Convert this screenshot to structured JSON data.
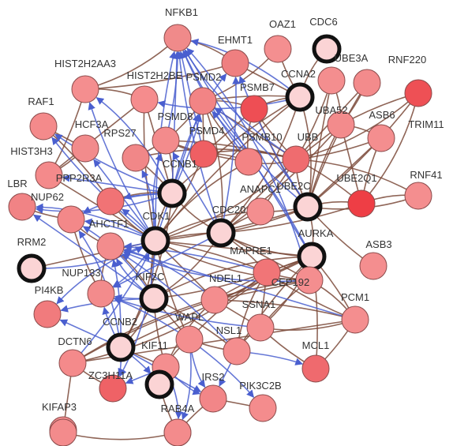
{
  "nodes": [
    {
      "id": "NFKB1",
      "label": "NFKB1",
      "fill": "#f08a8a",
      "hub": false
    },
    {
      "id": "EHMT1",
      "label": "EHMT1",
      "fill": "#ef7f80",
      "hub": false
    },
    {
      "id": "OAZ1",
      "label": "OAZ1",
      "fill": "#f48f90",
      "hub": false
    },
    {
      "id": "CDC6",
      "label": "CDC6",
      "fill": "#fbd4d5",
      "hub": true
    },
    {
      "id": "HIST2H2AA3",
      "label": "HIST2H2AA3",
      "fill": "#f48e8f",
      "hub": false
    },
    {
      "id": "HIST2H2BE",
      "label": "HIST2H2BE",
      "fill": "#f58c8d",
      "hub": false
    },
    {
      "id": "PSMD2",
      "label": "PSMD2",
      "fill": "#f28485",
      "hub": false
    },
    {
      "id": "PSMB7",
      "label": "PSMB7",
      "fill": "#ee4e54",
      "hub": false
    },
    {
      "id": "CCNA2",
      "label": "CCNA2",
      "fill": "#fbd4d5",
      "hub": true
    },
    {
      "id": "UBE3A",
      "label": "UBE3A",
      "fill": "#f48e8f",
      "hub": false
    },
    {
      "id": "RNF220",
      "label": "RNF220",
      "fill": "#f38b8c",
      "hub": false
    },
    {
      "id": "RAF1",
      "label": "RAF1",
      "fill": "#f48a8b",
      "hub": false
    },
    {
      "id": "HCFC3A",
      "label": "HCF3A",
      "fill": "#f28b8c",
      "hub": false
    },
    {
      "id": "PSMD8",
      "label": "PSMD8",
      "fill": "#f38b8c",
      "hub": false
    },
    {
      "id": "PSMD4",
      "label": "PSMD4",
      "fill": "#ef5f63",
      "hub": false
    },
    {
      "id": "RPS27",
      "label": "RPS27",
      "fill": "#f18788",
      "hub": false
    },
    {
      "id": "PSMB10",
      "label": "PSMB10",
      "fill": "#f38384",
      "hub": false
    },
    {
      "id": "UBB",
      "label": "UBB",
      "fill": "#ef6c6f",
      "hub": false
    },
    {
      "id": "UBA52",
      "label": "UBA52",
      "fill": "#f38b8c",
      "hub": false
    },
    {
      "id": "ASB6",
      "label": "ASB6",
      "fill": "#f48e8f",
      "hub": false
    },
    {
      "id": "TRIM11",
      "label": "TRIM11",
      "fill": "#ee5055",
      "hub": false
    },
    {
      "id": "HIST3H3",
      "label": "HIST3H3",
      "fill": "#f48a8b",
      "hub": false
    },
    {
      "id": "PPP2R3A",
      "label": "PPP2R3A",
      "fill": "#f17375",
      "hub": false
    },
    {
      "id": "CCNB1",
      "label": "CCNB1",
      "fill": "#fbd4d5",
      "hub": true
    },
    {
      "id": "ANAPC1",
      "label": "ANAPC1",
      "fill": "#f48e8f",
      "hub": false
    },
    {
      "id": "UBE2C",
      "label": "UBE2C",
      "fill": "#fbd4d5",
      "hub": true
    },
    {
      "id": "UBE2Q1",
      "label": "UBE2Q1",
      "fill": "#ee3e45",
      "hub": false
    },
    {
      "id": "RNF41",
      "label": "RNF41",
      "fill": "#f48e8f",
      "hub": false
    },
    {
      "id": "LBR",
      "label": "LBR",
      "fill": "#f18385",
      "hub": false
    },
    {
      "id": "NUP62",
      "label": "NUP62",
      "fill": "#f38889",
      "hub": false
    },
    {
      "id": "CDK1",
      "label": "CDK1",
      "fill": "#fbd4d5",
      "hub": true
    },
    {
      "id": "CDC20",
      "label": "CDC20",
      "fill": "#fbd4d5",
      "hub": true
    },
    {
      "id": "AURKA",
      "label": "AURKA",
      "fill": "#fbd4d5",
      "hub": true
    },
    {
      "id": "AHCTF1",
      "label": "AHCTF1",
      "fill": "#f38c8d",
      "hub": false
    },
    {
      "id": "MAPRE1",
      "label": "MAPRE1",
      "fill": "#f17577",
      "hub": false
    },
    {
      "id": "ASB3",
      "label": "ASB3",
      "fill": "#f48e8f",
      "hub": false
    },
    {
      "id": "RRM2",
      "label": "RRM2",
      "fill": "#fbd4d5",
      "hub": true
    },
    {
      "id": "NUP133",
      "label": "NUP133",
      "fill": "#f38b8c",
      "hub": false
    },
    {
      "id": "KIF2C",
      "label": "KIF2C",
      "fill": "#fbd4d5",
      "hub": true
    },
    {
      "id": "NDEL1",
      "label": "NDEL1",
      "fill": "#f48d8e",
      "hub": false
    },
    {
      "id": "CEP192",
      "label": "CEP192",
      "fill": "#f48e8f",
      "hub": false
    },
    {
      "id": "PI4KB",
      "label": "PI4KB",
      "fill": "#f17b7d",
      "hub": false
    },
    {
      "id": "PCM1",
      "label": "PCM1",
      "fill": "#f48e8f",
      "hub": false
    },
    {
      "id": "WAPL",
      "label": "WAPL",
      "fill": "#f48e8f",
      "hub": false
    },
    {
      "id": "CCNB2",
      "label": "CCNB2",
      "fill": "#fbd4d5",
      "hub": true
    },
    {
      "id": "SSNA1",
      "label": "SSNA1",
      "fill": "#f48e8f",
      "hub": false
    },
    {
      "id": "DCTN6",
      "label": "DCTN6",
      "fill": "#f48a8b",
      "hub": false
    },
    {
      "id": "MCL1",
      "label": "MCL1",
      "fill": "#ef6a6e",
      "hub": false
    },
    {
      "id": "NSL1",
      "label": "NSL1",
      "fill": "#f48d8e",
      "hub": false
    },
    {
      "id": "KIF11",
      "label": "KIF11",
      "fill": "#f48e8f",
      "hub": false
    },
    {
      "id": "ZC3H11A",
      "label": "ZC3H11A",
      "fill": "#ef6266",
      "hub": false
    },
    {
      "id": "IRS2",
      "label": "IRS2",
      "fill": "#f28688",
      "hub": false
    },
    {
      "id": "KIF18",
      "label": "",
      "fill": "#fbd4d5",
      "hub": true
    },
    {
      "id": "PIK3C2B",
      "label": "PIK3C2B",
      "fill": "#f48c8d",
      "hub": false
    },
    {
      "id": "RAB4A",
      "label": "RAB4A",
      "fill": "#f48e8f",
      "hub": false
    },
    {
      "id": "KIFAP3",
      "label": "KIFAP3",
      "fill": "#f48e8f",
      "hub": false
    },
    {
      "id": "BOT1",
      "label": "",
      "fill": "#f38b8c",
      "hub": false
    },
    {
      "id": "BOT2",
      "label": "",
      "fill": "#f38b8c",
      "hub": false
    }
  ],
  "edges_brown": [
    [
      "CDK1",
      "CCNB1"
    ],
    [
      "CDK1",
      "CDC20"
    ],
    [
      "CDK1",
      "AURKA"
    ],
    [
      "CDK1",
      "UBE2C"
    ],
    [
      "CDK1",
      "KIF2C"
    ],
    [
      "CDK1",
      "CCNB2"
    ],
    [
      "CDK1",
      "CCNA2"
    ],
    [
      "CDK1",
      "RRM2"
    ],
    [
      "CDK1",
      "PSMD4"
    ],
    [
      "CDK1",
      "UBB"
    ],
    [
      "CDK1",
      "PSMB10"
    ],
    [
      "CDK1",
      "MAPRE1"
    ],
    [
      "CDK1",
      "NDEL1"
    ],
    [
      "CDK1",
      "WAPL"
    ],
    [
      "CDK1",
      "CEP192"
    ],
    [
      "CDK1",
      "ANAPC1"
    ],
    [
      "CDK1",
      "HIST2H2BE"
    ],
    [
      "CDK1",
      "HIST3H3"
    ],
    [
      "CDC20",
      "UBE2C"
    ],
    [
      "CDC20",
      "AURKA"
    ],
    [
      "CDC20",
      "CCNB1"
    ],
    [
      "CDC20",
      "ANAPC1"
    ],
    [
      "CDC20",
      "UBB"
    ],
    [
      "CDC20",
      "UBA52"
    ],
    [
      "CDC20",
      "CCNA2"
    ],
    [
      "CDC20",
      "KIF2C"
    ],
    [
      "CDC20",
      "MAPRE1"
    ],
    [
      "CDC20",
      "CEP192"
    ],
    [
      "CDC20",
      "UBE2Q1"
    ],
    [
      "CDC20",
      "PSMD2"
    ],
    [
      "UBE2C",
      "UBB"
    ],
    [
      "UBE2C",
      "UBA52"
    ],
    [
      "UBE2C",
      "ASB6"
    ],
    [
      "UBE2C",
      "TRIM11"
    ],
    [
      "UBE2C",
      "RNF41"
    ],
    [
      "UBE2C",
      "UBE2Q1"
    ],
    [
      "UBE2C",
      "RNF220"
    ],
    [
      "UBE2C",
      "UBE3A"
    ],
    [
      "UBE2C",
      "ASB3"
    ],
    [
      "UBE2C",
      "CCNA2"
    ],
    [
      "UBE2C",
      "AURKA"
    ],
    [
      "UBE2C",
      "PSMB7"
    ],
    [
      "UBB",
      "UBA52"
    ],
    [
      "UBB",
      "ASB6"
    ],
    [
      "UBB",
      "TRIM11"
    ],
    [
      "UBB",
      "RNF41"
    ],
    [
      "UBB",
      "UBE2Q1"
    ],
    [
      "UBB",
      "RNF220"
    ],
    [
      "UBB",
      "UBE3A"
    ],
    [
      "UBB",
      "PSMD4"
    ],
    [
      "UBB",
      "PSMB10"
    ],
    [
      "UBB",
      "PSMB7"
    ],
    [
      "UBB",
      "PSMD2"
    ],
    [
      "UBB",
      "PSMD8"
    ],
    [
      "UBB",
      "RPS27"
    ],
    [
      "UBA52",
      "ASB6"
    ],
    [
      "UBA52",
      "TRIM11"
    ],
    [
      "UBA52",
      "UBE2Q1"
    ],
    [
      "UBA52",
      "RNF220"
    ],
    [
      "UBA52",
      "UBE3A"
    ],
    [
      "AURKA",
      "CEP192"
    ],
    [
      "AURKA",
      "PCM1"
    ],
    [
      "AURKA",
      "MAPRE1"
    ],
    [
      "AURKA",
      "NDEL1"
    ],
    [
      "AURKA",
      "KIF2C"
    ],
    [
      "AURKA",
      "SSNA1"
    ],
    [
      "AURKA",
      "MCL1"
    ],
    [
      "AURKA",
      "CCNB2"
    ],
    [
      "AURKA",
      "NSL1"
    ],
    [
      "AURKA",
      "WAPL"
    ],
    [
      "CEP192",
      "PCM1"
    ],
    [
      "CEP192",
      "MAPRE1"
    ],
    [
      "CEP192",
      "NDEL1"
    ],
    [
      "CEP192",
      "SSNA1"
    ],
    [
      "CEP192",
      "DCTN6"
    ],
    [
      "MAPRE1",
      "NDEL1"
    ],
    [
      "MAPRE1",
      "KIF2C"
    ],
    [
      "MAPRE1",
      "SSNA1"
    ],
    [
      "MAPRE1",
      "PCM1"
    ],
    [
      "MAPRE1",
      "NSL1"
    ],
    [
      "MAPRE1",
      "DCTN6"
    ],
    [
      "NDEL1",
      "PCM1"
    ],
    [
      "NDEL1",
      "SSNA1"
    ],
    [
      "NDEL1",
      "DCTN6"
    ],
    [
      "NDEL1",
      "KIF11"
    ],
    [
      "KIF2C",
      "CCNB2"
    ],
    [
      "KIF2C",
      "NSL1"
    ],
    [
      "KIF2C",
      "WAPL"
    ],
    [
      "KIF2C",
      "KIF11"
    ],
    [
      "KIF2C",
      "AHCTF1"
    ],
    [
      "CCNB1",
      "CCNB2"
    ],
    [
      "CCNB1",
      "CCNA2"
    ],
    [
      "CCNB1",
      "HIST2H2BE"
    ],
    [
      "CCNB1",
      "RPS27"
    ],
    [
      "CCNB1",
      "PSMD8"
    ],
    [
      "CCNA2",
      "CDC6"
    ],
    [
      "CCNA2",
      "OAZ1"
    ],
    [
      "CCNA2",
      "EHMT1"
    ],
    [
      "CCNA2",
      "PSMD2"
    ],
    [
      "CCNA2",
      "PSMB7"
    ],
    [
      "PSMD2",
      "PSMB7"
    ],
    [
      "PSMD2",
      "PSMD8"
    ],
    [
      "PSMD2",
      "PSMD4"
    ],
    [
      "PSMD2",
      "PSMB10"
    ],
    [
      "PSMD2",
      "OAZ1"
    ],
    [
      "PSMD4",
      "PSMB10"
    ],
    [
      "PSMD4",
      "PSMD8"
    ],
    [
      "PSMD4",
      "PSMB7"
    ],
    [
      "PSMD8",
      "PSMB10"
    ],
    [
      "PSMB7",
      "PSMB10"
    ],
    [
      "HIST2H2AA3",
      "HIST2H2BE"
    ],
    [
      "HIST2H2AA3",
      "HIST3H3"
    ],
    [
      "HIST2H2BE",
      "HIST3H3"
    ],
    [
      "HIST2H2AA3",
      "EHMT1"
    ],
    [
      "HIST2H2AA3",
      "NFKB1"
    ],
    [
      "NFKB1",
      "EHMT1"
    ],
    [
      "RAF1",
      "PPP2R3A"
    ],
    [
      "RAF1",
      "HCFC3A"
    ],
    [
      "NUP62",
      "NUP133"
    ],
    [
      "NUP62",
      "AHCTF1"
    ],
    [
      "NUP133",
      "AHCTF1"
    ],
    [
      "NUP62",
      "LBR"
    ],
    [
      "CCNB2",
      "KIF11"
    ],
    [
      "WAPL",
      "NSL1"
    ],
    [
      "WAPL",
      "KIF11"
    ],
    [
      "NSL1",
      "SSNA1"
    ],
    [
      "ZC3H11A",
      "DCTN6"
    ],
    [
      "DCTN6",
      "KIFAP3"
    ],
    [
      "KIFAP3",
      "BOT1"
    ],
    [
      "BOT1",
      "BOT2"
    ],
    [
      "BOT2",
      "RAB4A"
    ],
    [
      "RAB4A",
      "IRS2"
    ],
    [
      "IRS2",
      "PIK3C2B"
    ],
    [
      "KIF18",
      "RAB4A"
    ],
    [
      "KIF18",
      "KIF11"
    ],
    [
      "PCM1",
      "SSNA1"
    ],
    [
      "PCM1",
      "MCL1"
    ],
    [
      "PCM1",
      "DCTN6"
    ],
    [
      "SSNA1",
      "MCL1"
    ],
    [
      "UBE2Q1",
      "TRIM11"
    ],
    [
      "UBE2Q1",
      "RNF41"
    ],
    [
      "UBE2Q1",
      "ASB6"
    ],
    [
      "ANAPC1",
      "UBB"
    ],
    [
      "ANAPC1",
      "UBE2C"
    ],
    [
      "PPP2R3A",
      "CDK1"
    ],
    [
      "PPP2R3A",
      "CCNB1"
    ],
    [
      "HCFC3A",
      "HIST3H3"
    ],
    [
      "RPS27",
      "PSMD8"
    ]
  ],
  "edges_blue": [
    [
      "CDK1",
      "NFKB1"
    ],
    [
      "CDK1",
      "PSMD2"
    ],
    [
      "CDK1",
      "NUP62"
    ],
    [
      "CDK1",
      "LBR"
    ],
    [
      "CDK1",
      "NUP133"
    ],
    [
      "CDK1",
      "RAF1"
    ],
    [
      "CDK1",
      "HCFC3A"
    ],
    [
      "CDK1",
      "PPP2R3A"
    ],
    [
      "CDK1",
      "RPS27"
    ],
    [
      "CDK1",
      "PSMD8"
    ],
    [
      "CDK1",
      "HIST2H2AA3"
    ],
    [
      "CCNB1",
      "NFKB1"
    ],
    [
      "CCNB1",
      "PSMD2"
    ],
    [
      "CCNB1",
      "NUP62"
    ],
    [
      "CCNB1",
      "LBR"
    ],
    [
      "CCNB1",
      "RAF1"
    ],
    [
      "CCNB1",
      "HIST3H3"
    ],
    [
      "CCNB1",
      "PPP2R3A"
    ],
    [
      "CCNB1",
      "HIST2H2AA3"
    ],
    [
      "CCNB1",
      "EHMT1"
    ],
    [
      "CDC20",
      "NFKB1"
    ],
    [
      "CDC20",
      "PSMD8"
    ],
    [
      "CDC20",
      "EHMT1"
    ],
    [
      "UBE2C",
      "PSMD2"
    ],
    [
      "UBE2C",
      "NFKB1"
    ],
    [
      "UBE2C",
      "EHMT1"
    ],
    [
      "AURKA",
      "NFKB1"
    ],
    [
      "AURKA",
      "PSMD2"
    ],
    [
      "CCNA2",
      "NFKB1"
    ],
    [
      "CCNA2",
      "HIST2H2BE"
    ],
    [
      "KIF2C",
      "NUP133"
    ],
    [
      "KIF2C",
      "LBR"
    ],
    [
      "KIF2C",
      "PI4KB"
    ],
    [
      "KIF2C",
      "NUP62"
    ],
    [
      "KIF2C",
      "AHCTF1"
    ],
    [
      "CCNB2",
      "NUP133"
    ],
    [
      "CCNB2",
      "PI4KB"
    ],
    [
      "CCNB2",
      "AHCTF1"
    ],
    [
      "CCNB2",
      "NUP62"
    ],
    [
      "CCNB2",
      "ZC3H11A"
    ],
    [
      "CCNB2",
      "KIF18"
    ],
    [
      "CCNB2",
      "IRS2"
    ],
    [
      "WAPL",
      "NUP133"
    ],
    [
      "WAPL",
      "IRS2"
    ],
    [
      "WAPL",
      "RAB4A"
    ],
    [
      "WAPL",
      "PIK3C2B"
    ],
    [
      "KIF11",
      "ZC3H11A"
    ],
    [
      "KIF11",
      "KIF18"
    ],
    [
      "KIF11",
      "IRS2"
    ],
    [
      "KIF11",
      "RAB4A"
    ],
    [
      "NSL1",
      "MCL1"
    ],
    [
      "NSL1",
      "IRS2"
    ],
    [
      "NSL1",
      "AHCTF1"
    ],
    [
      "CDK1",
      "PI4KB"
    ],
    [
      "CDK1",
      "ZC3H11A"
    ],
    [
      "CDK1",
      "AHCTF1"
    ],
    [
      "CDC20",
      "NUP133"
    ],
    [
      "MAPRE1",
      "AHCTF1"
    ],
    [
      "NDEL1",
      "AHCTF1"
    ],
    [
      "UBB",
      "NFKB1"
    ],
    [
      "PSMB10",
      "NFKB1"
    ],
    [
      "PSMD4",
      "NFKB1"
    ],
    [
      "PSMD8",
      "NFKB1"
    ],
    [
      "CEP192",
      "NFKB1"
    ],
    [
      "CEP192",
      "AHCTF1"
    ],
    [
      "SSNA1",
      "NUP133"
    ],
    [
      "PCM1",
      "AHCTF1"
    ],
    [
      "DCTN6",
      "CDK1"
    ],
    [
      "RRM2",
      "CDK1"
    ]
  ]
}
